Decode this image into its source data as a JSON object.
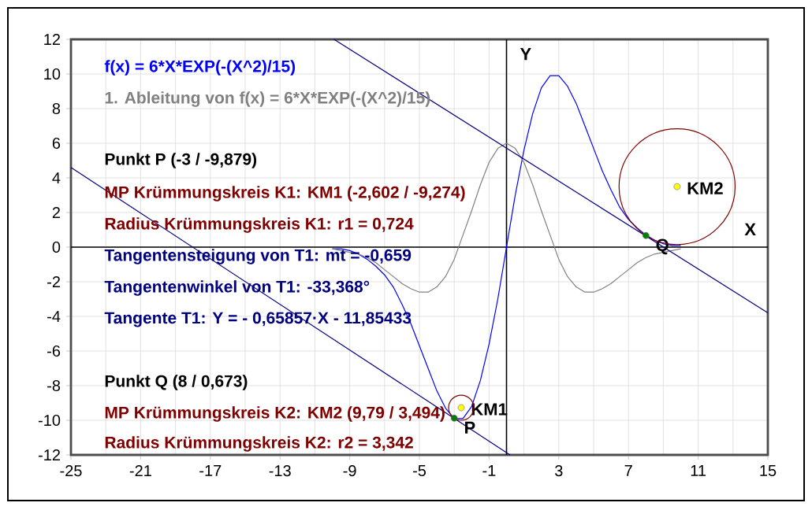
{
  "chart_data": {
    "type": "line",
    "xlabel": "X",
    "ylabel": "Y",
    "xlim": [
      -25,
      15
    ],
    "ylim": [
      -12,
      12
    ],
    "xticks": [
      -25,
      -21,
      -17,
      -13,
      -9,
      -5,
      -1,
      3,
      7,
      11,
      15
    ],
    "yticks": [
      -12,
      -10,
      -8,
      -6,
      -4,
      -2,
      0,
      2,
      4,
      6,
      8,
      10,
      12
    ],
    "grid": true,
    "annotations": [
      "Punkt P (-3 / -9,879)",
      "MP Krümmungskreis K1: KM1 (-2,602 / -9,274)",
      "Radius Krümmungskreis K1: r1 = 0,724",
      "Tangentensteigung von T1: mt = -0,659",
      "Tangentenwinkel von T1: -33,368°",
      "Tangente T1: Y =  - 0,65857·X - 11,85433",
      "Punkt Q (8 / 0,673)",
      "MP Krümmungskreis K2: KM2 (9,79 / 3,494)",
      "Radius Krümmungskreis K2: r2 = 3,342"
    ],
    "series": [
      {
        "name": "f(x) = 6*X*EXP(-(X^2)/15)",
        "color": "#0000ff",
        "x": [
          -10,
          -9.5,
          -9,
          -8.5,
          -8,
          -7.5,
          -7,
          -6.5,
          -6,
          -5.5,
          -5,
          -4.5,
          -4,
          -3.5,
          -3,
          -2.5,
          -2,
          -1.5,
          -1,
          -0.5,
          0,
          0.5,
          1,
          1.5,
          2,
          2.5,
          3,
          3.5,
          4,
          4.5,
          5,
          5.5,
          6,
          6.5,
          7,
          7.5,
          8,
          8.5,
          9,
          9.5,
          10
        ],
        "values": [
          -0.1,
          -0.1,
          -0.2,
          -0.4,
          -0.7,
          -1.1,
          -1.6,
          -2.3,
          -3.3,
          -4.4,
          -5.7,
          -7.0,
          -8.3,
          -9.3,
          -9.9,
          -9.9,
          -9.2,
          -7.7,
          -5.6,
          -3.0,
          0,
          3.0,
          5.6,
          7.7,
          9.2,
          9.9,
          9.9,
          9.3,
          8.3,
          7.0,
          5.7,
          4.4,
          3.3,
          2.3,
          1.6,
          1.1,
          0.7,
          0.4,
          0.2,
          0.1,
          0.1
        ]
      },
      {
        "name": "1. Ableitung von f(x) = 6*X*EXP(-(X^2)/15)",
        "color": "#808080",
        "x": [
          -10,
          -9.5,
          -9,
          -8.5,
          -8,
          -7.5,
          -7,
          -6.5,
          -6,
          -5.5,
          -5,
          -4.5,
          -4,
          -3.5,
          -3,
          -2.5,
          -2,
          -1.5,
          -1,
          -0.5,
          0,
          0.5,
          1,
          1.5,
          2,
          2.5,
          3,
          3.5,
          4,
          4.5,
          5,
          5.5,
          6,
          6.5,
          7,
          7.5,
          8,
          8.5,
          9,
          9.5,
          10
        ],
        "values": [
          -0.1,
          -0.2,
          -0.3,
          -0.4,
          -0.6,
          -0.9,
          -1.3,
          -1.7,
          -2.1,
          -2.4,
          -2.6,
          -2.6,
          -2.3,
          -1.7,
          -0.7,
          0.7,
          2.1,
          3.6,
          4.9,
          5.7,
          6,
          5.7,
          4.9,
          3.6,
          2.1,
          0.7,
          -0.7,
          -1.7,
          -2.3,
          -2.6,
          -2.6,
          -2.4,
          -2.1,
          -1.7,
          -1.3,
          -0.9,
          -0.6,
          -0.4,
          -0.3,
          -0.2,
          -0.1
        ]
      },
      {
        "color": "#000080",
        "x": [
          -25,
          0.2
        ],
        "values": [
          4.6,
          -12.0
        ]
      },
      {
        "color": "#000080",
        "x": [
          -9.9,
          15
        ],
        "values": [
          12,
          -3.8
        ]
      },
      {
        "type": "scatter",
        "name": "P",
        "color": "#008000",
        "x": [
          -3
        ],
        "values": [
          -9.879
        ]
      },
      {
        "type": "scatter",
        "name": "Q",
        "color": "#008000",
        "x": [
          8
        ],
        "values": [
          0.673
        ]
      },
      {
        "type": "scatter",
        "name": "KM1",
        "color": "#ffff00",
        "x": [
          -2.602
        ],
        "values": [
          -9.274
        ]
      },
      {
        "type": "scatter",
        "name": "KM2",
        "color": "#ffff00",
        "x": [
          9.79
        ],
        "values": [
          3.494
        ]
      }
    ]
  }
}
